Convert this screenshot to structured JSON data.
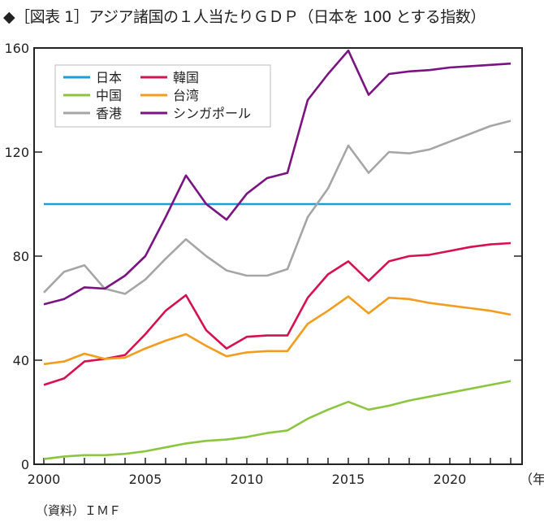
{
  "title": "◆［図表 1］アジア諸国の１人当たりＧＤＰ（日本を 100 とする指数）",
  "source": "（資料）ＩＭＦ",
  "chart_data": {
    "type": "line",
    "title": "アジア諸国の１人当たりＧＤＰ（日本を 100 とする指数）",
    "xlabel": "（年）",
    "ylabel": "",
    "xlim": [
      2000,
      2023
    ],
    "ylim": [
      0,
      160
    ],
    "grid": false,
    "legend_position": "top-left",
    "x_ticks": [
      2000,
      2005,
      2010,
      2015,
      2020
    ],
    "y_ticks": [
      0,
      40,
      80,
      120,
      160
    ],
    "x": [
      2000,
      2001,
      2002,
      2003,
      2004,
      2005,
      2006,
      2007,
      2008,
      2009,
      2010,
      2011,
      2012,
      2013,
      2014,
      2015,
      2016,
      2017,
      2018,
      2019,
      2020,
      2021,
      2022,
      2023
    ],
    "series": [
      {
        "name": "日本",
        "color": "#1a9fd9",
        "values": [
          100,
          100,
          100,
          100,
          100,
          100,
          100,
          100,
          100,
          100,
          100,
          100,
          100,
          100,
          100,
          100,
          100,
          100,
          100,
          100,
          100,
          100,
          100,
          100
        ]
      },
      {
        "name": "韓国",
        "color": "#d6114f",
        "values": [
          30.5,
          33,
          39.5,
          40.5,
          42,
          50,
          59,
          65,
          51.5,
          44.5,
          49,
          49.5,
          49.5,
          64,
          73,
          78,
          70.5,
          78,
          80,
          80.5,
          82,
          83.5,
          84.5,
          85
        ]
      },
      {
        "name": "中国",
        "color": "#8cc63f",
        "values": [
          2,
          3,
          3.5,
          3.5,
          4,
          5,
          6.5,
          8,
          9,
          9.5,
          10.5,
          12,
          13,
          17.5,
          21,
          24,
          21,
          22.5,
          24.5,
          26,
          27.5,
          29,
          30.5,
          32
        ]
      },
      {
        "name": "台湾",
        "color": "#f39c1e",
        "values": [
          38.5,
          39.5,
          42.5,
          40.5,
          41,
          44.5,
          47.5,
          50,
          45.5,
          41.5,
          43,
          43.5,
          43.5,
          54,
          59,
          64.5,
          58,
          64,
          63.5,
          62,
          61,
          60,
          59,
          57.5
        ]
      },
      {
        "name": "香港",
        "color": "#a6a6a6",
        "values": [
          66,
          74,
          76.5,
          67.5,
          65.5,
          71,
          79,
          86.5,
          80,
          74.5,
          72.5,
          72.5,
          75,
          95,
          106,
          122.5,
          112,
          120,
          119.5,
          121,
          124,
          127,
          130,
          132
        ]
      },
      {
        "name": "シンガポール",
        "color": "#7b1382",
        "values": [
          61.5,
          63.5,
          68,
          67.5,
          72.5,
          80,
          95,
          111,
          100,
          94,
          104,
          110,
          112,
          140,
          150,
          159,
          142,
          150,
          151,
          151.5,
          152.5,
          153,
          153.5,
          154
        ]
      }
    ]
  }
}
